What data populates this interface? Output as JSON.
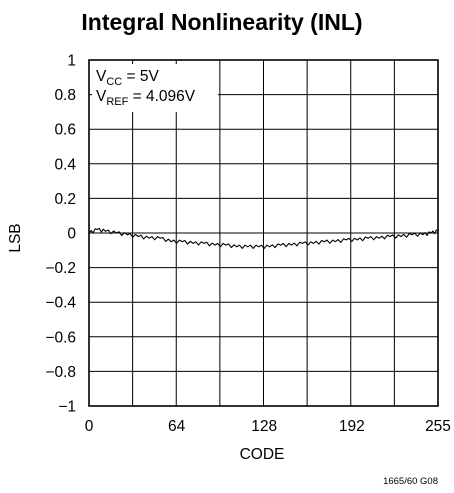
{
  "chart_data": {
    "type": "line",
    "title": "Integral Nonlinearity (INL)",
    "xlabel": "CODE",
    "ylabel": "LSB",
    "xlim": [
      0,
      255
    ],
    "ylim": [
      -1,
      1
    ],
    "x_ticks": [
      0,
      64,
      128,
      192,
      255
    ],
    "x_tick_labels": [
      "0",
      "64",
      "128",
      "192",
      "255"
    ],
    "y_ticks": [
      1,
      0.8,
      0.6,
      0.4,
      0.2,
      0,
      -0.2,
      -0.4,
      -0.6,
      -0.8,
      -1
    ],
    "y_tick_labels": [
      "1",
      "0.8",
      "0.6",
      "0.4",
      "0.2",
      "0",
      "−0.2",
      "−0.4",
      "−0.6",
      "−0.8",
      "−1"
    ],
    "grid": true,
    "annotations": {
      "vcc": {
        "main": "V",
        "sub": "CC",
        "rest": " = 5V"
      },
      "vref": {
        "main": "V",
        "sub": "REF",
        "rest": " = 4.096V"
      }
    },
    "figure_id": "1665/60 G08",
    "series": [
      {
        "x": [
          0,
          6,
          12,
          20,
          28,
          36,
          44,
          52,
          60,
          68,
          76,
          84,
          92,
          100,
          108,
          116,
          124,
          132,
          140,
          148,
          156,
          164,
          172,
          180,
          188,
          196,
          204,
          212,
          220,
          228,
          236,
          244,
          250,
          255
        ],
        "y": [
          0.0,
          0.02,
          0.01,
          0.0,
          -0.01,
          -0.02,
          -0.03,
          -0.03,
          -0.05,
          -0.05,
          -0.06,
          -0.06,
          -0.07,
          -0.07,
          -0.08,
          -0.08,
          -0.08,
          -0.08,
          -0.07,
          -0.07,
          -0.06,
          -0.06,
          -0.05,
          -0.05,
          -0.04,
          -0.04,
          -0.03,
          -0.03,
          -0.02,
          -0.02,
          -0.01,
          -0.01,
          0.0,
          0.01
        ]
      }
    ]
  }
}
